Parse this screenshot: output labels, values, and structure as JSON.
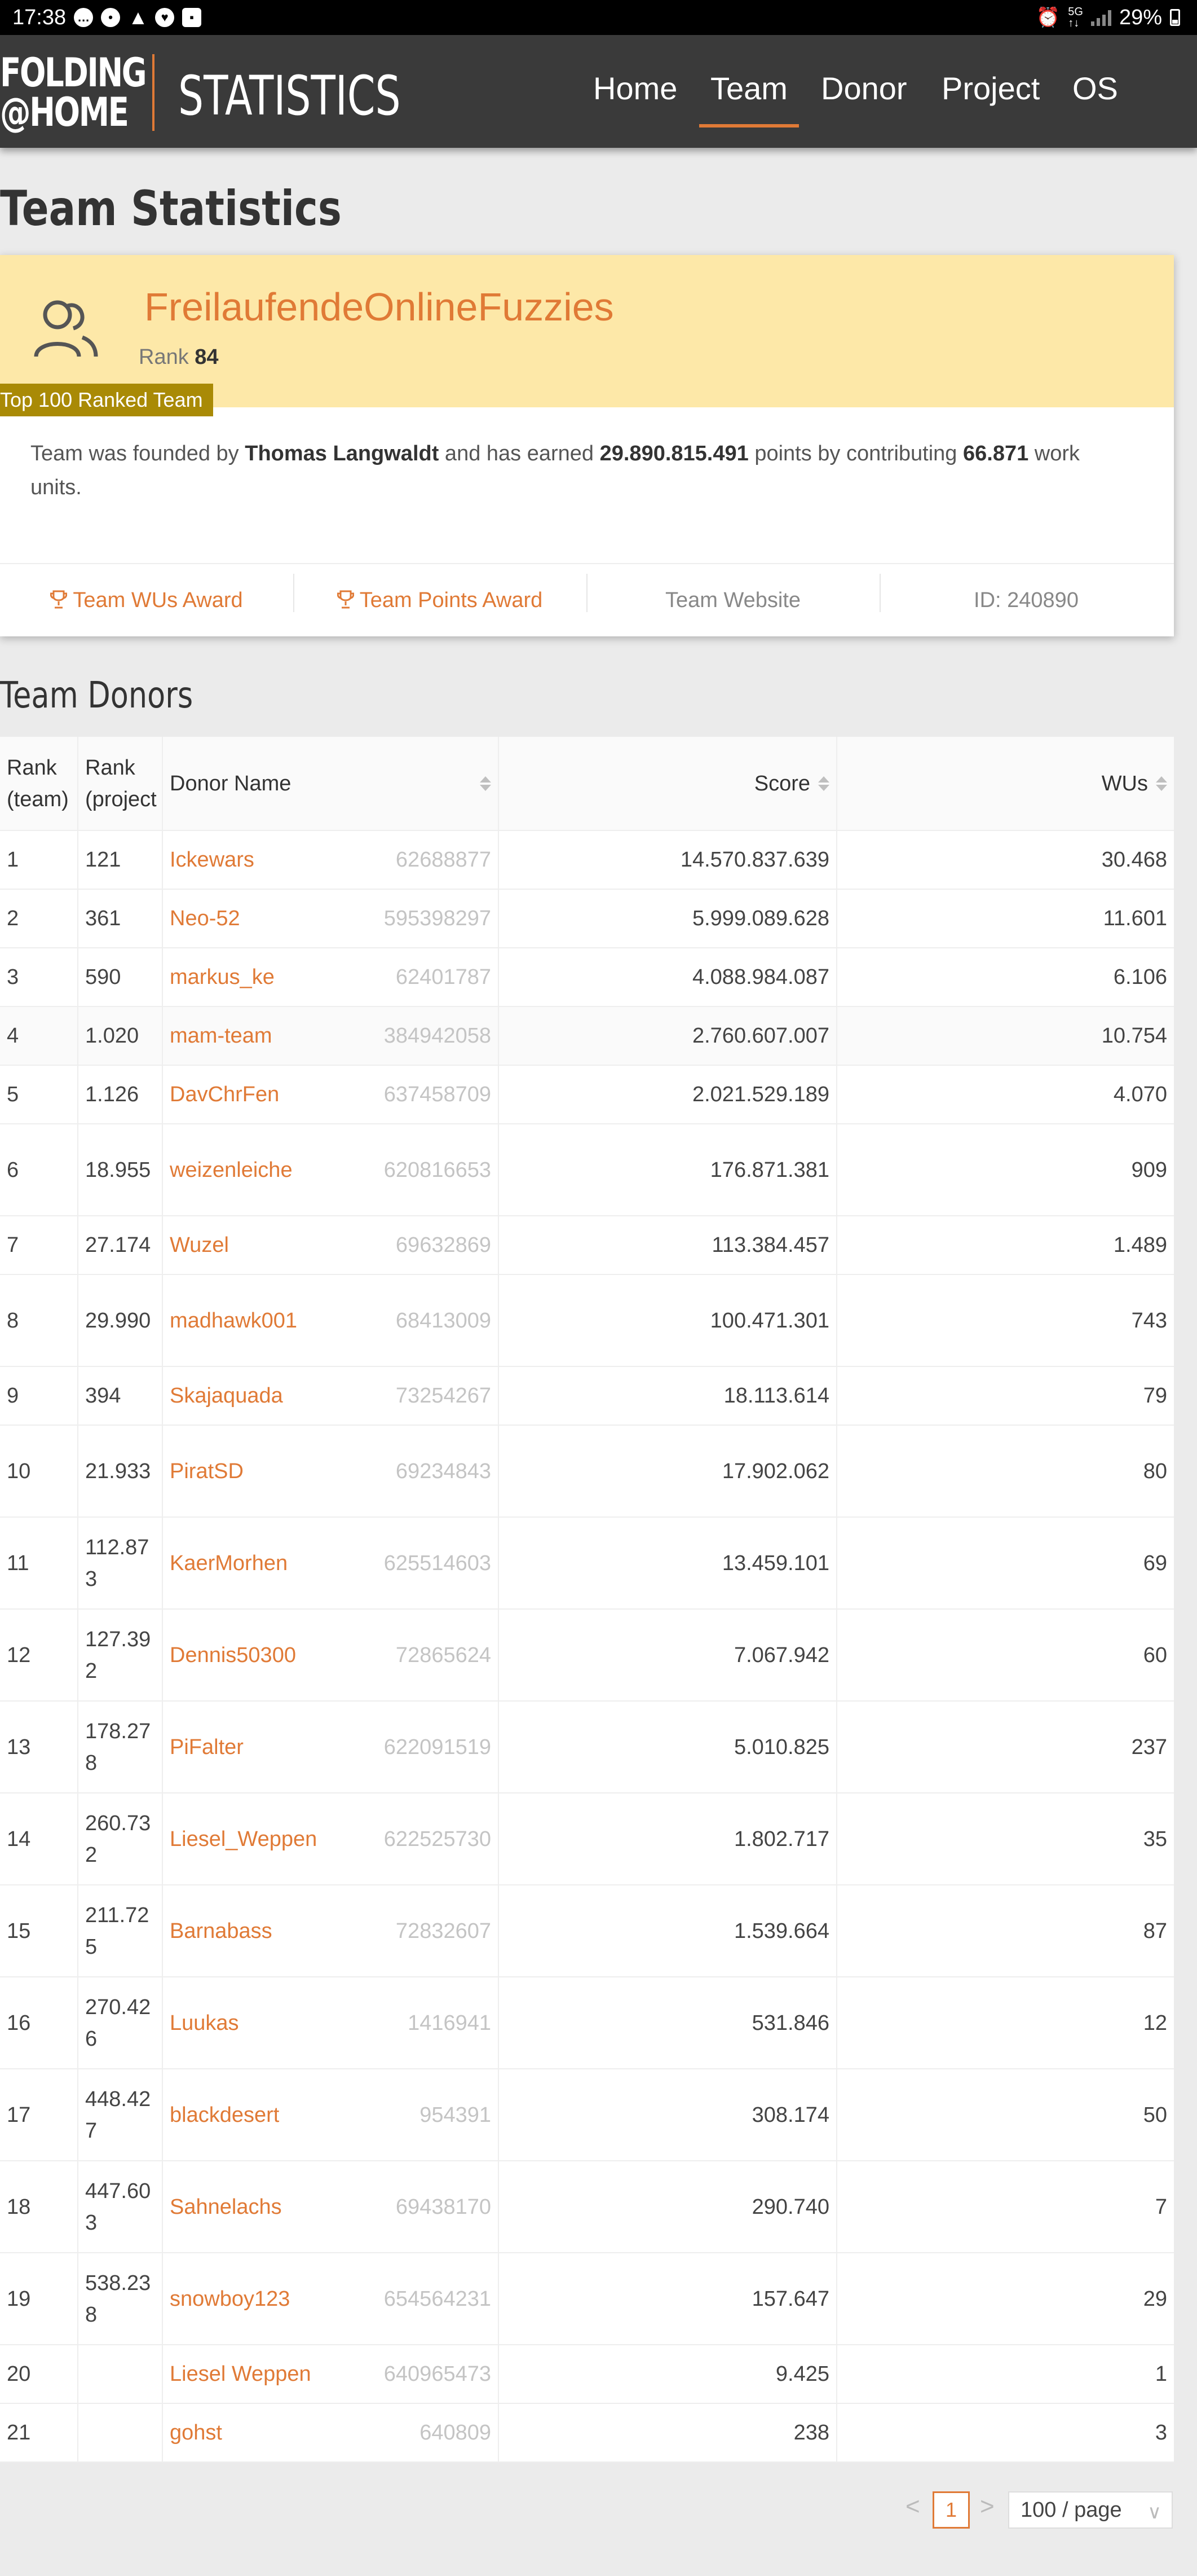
{
  "status_bar": {
    "time": "17:38",
    "battery": "29%"
  },
  "header": {
    "logo_line1": "FOLDING",
    "logo_line2": "@HOME",
    "logo_stats": "STATISTICS",
    "nav": [
      {
        "label": "Home",
        "active": false
      },
      {
        "label": "Team",
        "active": true
      },
      {
        "label": "Donor",
        "active": false
      },
      {
        "label": "Project",
        "active": false
      },
      {
        "label": "OS",
        "active": false
      }
    ]
  },
  "page_title": "Team Statistics",
  "team": {
    "name": "FreilaufendeOnlineFuzzies",
    "rank_label": "Rank",
    "rank": "84",
    "badge": "Top 100 Ranked Team",
    "desc_prefix": "Team was founded by ",
    "founder": "Thomas Langwaldt",
    "desc_mid": " and has earned ",
    "points": "29.890.815.491",
    "desc_mid2": " points by contributing ",
    "work_units": "66.871",
    "desc_suffix": " work units.",
    "footer": {
      "wus_award": "Team WUs Award",
      "points_award": "Team Points Award",
      "website": "Team Website",
      "id": "ID: 240890"
    }
  },
  "donors_title": "Team Donors",
  "table": {
    "headers": {
      "rank_team": "Rank (team)",
      "rank_project": "Rank (project",
      "donor_name": "Donor Name",
      "score": "Score",
      "wus": "WUs"
    },
    "rows": [
      {
        "rank_team": "1",
        "rank_project": "121",
        "name": "Ickewars",
        "id": "62688877",
        "score": "14.570.837.639",
        "wus": "30.468"
      },
      {
        "rank_team": "2",
        "rank_project": "361",
        "name": "Neo-52",
        "id": "595398297",
        "score": "5.999.089.628",
        "wus": "11.601"
      },
      {
        "rank_team": "3",
        "rank_project": "590",
        "name": "markus_ke",
        "id": "62401787",
        "score": "4.088.984.087",
        "wus": "6.106"
      },
      {
        "rank_team": "4",
        "rank_project": "1.020",
        "name": "mam-team",
        "id": "384942058",
        "score": "2.760.607.007",
        "wus": "10.754"
      },
      {
        "rank_team": "5",
        "rank_project": "1.126",
        "name": "DavChrFen",
        "id": "637458709",
        "score": "2.021.529.189",
        "wus": "4.070"
      },
      {
        "rank_team": "6",
        "rank_project": "18.955",
        "name": "weizenleiche",
        "id": "620816653",
        "score": "176.871.381",
        "wus": "909"
      },
      {
        "rank_team": "7",
        "rank_project": "27.174",
        "name": "Wuzel",
        "id": "69632869",
        "score": "113.384.457",
        "wus": "1.489"
      },
      {
        "rank_team": "8",
        "rank_project": "29.990",
        "name": "madhawk001",
        "id": "68413009",
        "score": "100.471.301",
        "wus": "743"
      },
      {
        "rank_team": "9",
        "rank_project": "394",
        "name": "Skajaquada",
        "id": "73254267",
        "score": "18.113.614",
        "wus": "79"
      },
      {
        "rank_team": "10",
        "rank_project": "21.933",
        "name": "PiratSD",
        "id": "69234843",
        "score": "17.902.062",
        "wus": "80"
      },
      {
        "rank_team": "11",
        "rank_project": "112.873",
        "name": "KaerMorhen",
        "id": "625514603",
        "score": "13.459.101",
        "wus": "69"
      },
      {
        "rank_team": "12",
        "rank_project": "127.392",
        "name": "Dennis50300",
        "id": "72865624",
        "score": "7.067.942",
        "wus": "60"
      },
      {
        "rank_team": "13",
        "rank_project": "178.278",
        "name": "PiFalter",
        "id": "622091519",
        "score": "5.010.825",
        "wus": "237"
      },
      {
        "rank_team": "14",
        "rank_project": "260.732",
        "name": "Liesel_Weppen",
        "id": "622525730",
        "score": "1.802.717",
        "wus": "35"
      },
      {
        "rank_team": "15",
        "rank_project": "211.725",
        "name": "Barnabass",
        "id": "72832607",
        "score": "1.539.664",
        "wus": "87"
      },
      {
        "rank_team": "16",
        "rank_project": "270.426",
        "name": "Luukas",
        "id": "1416941",
        "score": "531.846",
        "wus": "12"
      },
      {
        "rank_team": "17",
        "rank_project": "448.427",
        "name": "blackdesert",
        "id": "954391",
        "score": "308.174",
        "wus": "50"
      },
      {
        "rank_team": "18",
        "rank_project": "447.603",
        "name": "Sahnelachs",
        "id": "69438170",
        "score": "290.740",
        "wus": "7"
      },
      {
        "rank_team": "19",
        "rank_project": "538.238",
        "name": "snowboy123",
        "id": "654564231",
        "score": "157.647",
        "wus": "29"
      },
      {
        "rank_team": "20",
        "rank_project": "",
        "name": "Liesel Weppen",
        "id": "640965473",
        "score": "9.425",
        "wus": "1"
      },
      {
        "rank_team": "21",
        "rank_project": "",
        "name": "gohst",
        "id": "640809",
        "score": "238",
        "wus": "3"
      }
    ]
  },
  "pagination": {
    "prev": "<",
    "current": "1",
    "next": ">",
    "page_size": "100 / page"
  },
  "colors": {
    "accent": "#e07a36",
    "header_bg": "#3a3a3a",
    "card_head_bg": "#fde8a8",
    "badge_bg": "#a98a06"
  }
}
